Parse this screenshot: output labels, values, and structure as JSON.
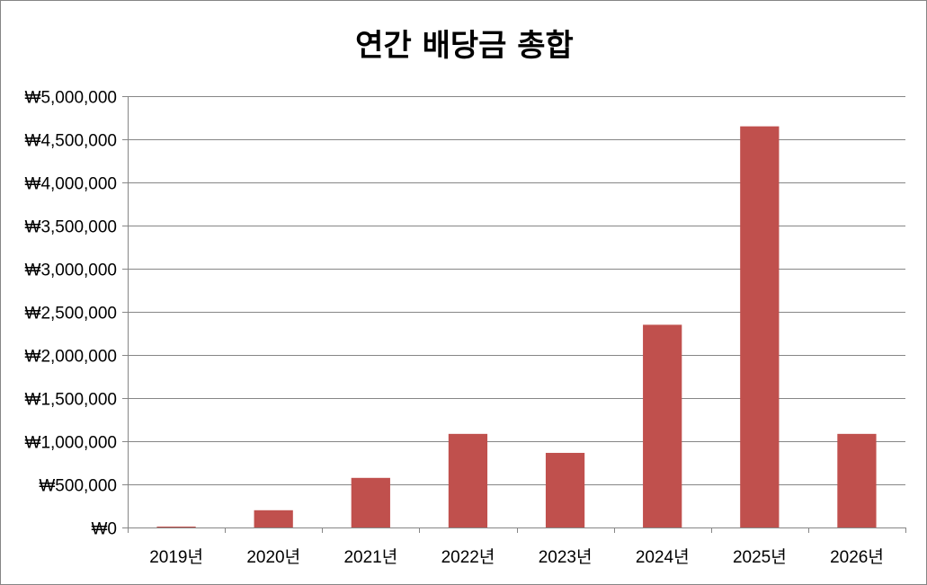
{
  "chart_data": {
    "type": "bar",
    "title": "연간 배당금 총합",
    "categories": [
      "2019년",
      "2020년",
      "2021년",
      "2022년",
      "2023년",
      "2024년",
      "2025년",
      "2026년"
    ],
    "values": [
      10000,
      200000,
      575000,
      1085000,
      865000,
      2350000,
      4650000,
      1085000
    ],
    "ylim": [
      0,
      5000000
    ],
    "yticks": [
      0,
      500000,
      1000000,
      1500000,
      2000000,
      2500000,
      3000000,
      3500000,
      4000000,
      4500000,
      5000000
    ],
    "ytick_labels": [
      "₩0",
      "₩500,000",
      "₩1,000,000",
      "₩1,500,000",
      "₩2,000,000",
      "₩2,500,000",
      "₩3,000,000",
      "₩3,500,000",
      "₩4,000,000",
      "₩4,500,000",
      "₩5,000,000"
    ],
    "xlabel": "",
    "ylabel": "",
    "grid": true,
    "legend": "none",
    "bar_color": "#C0504D",
    "grid_color": "#868686"
  }
}
